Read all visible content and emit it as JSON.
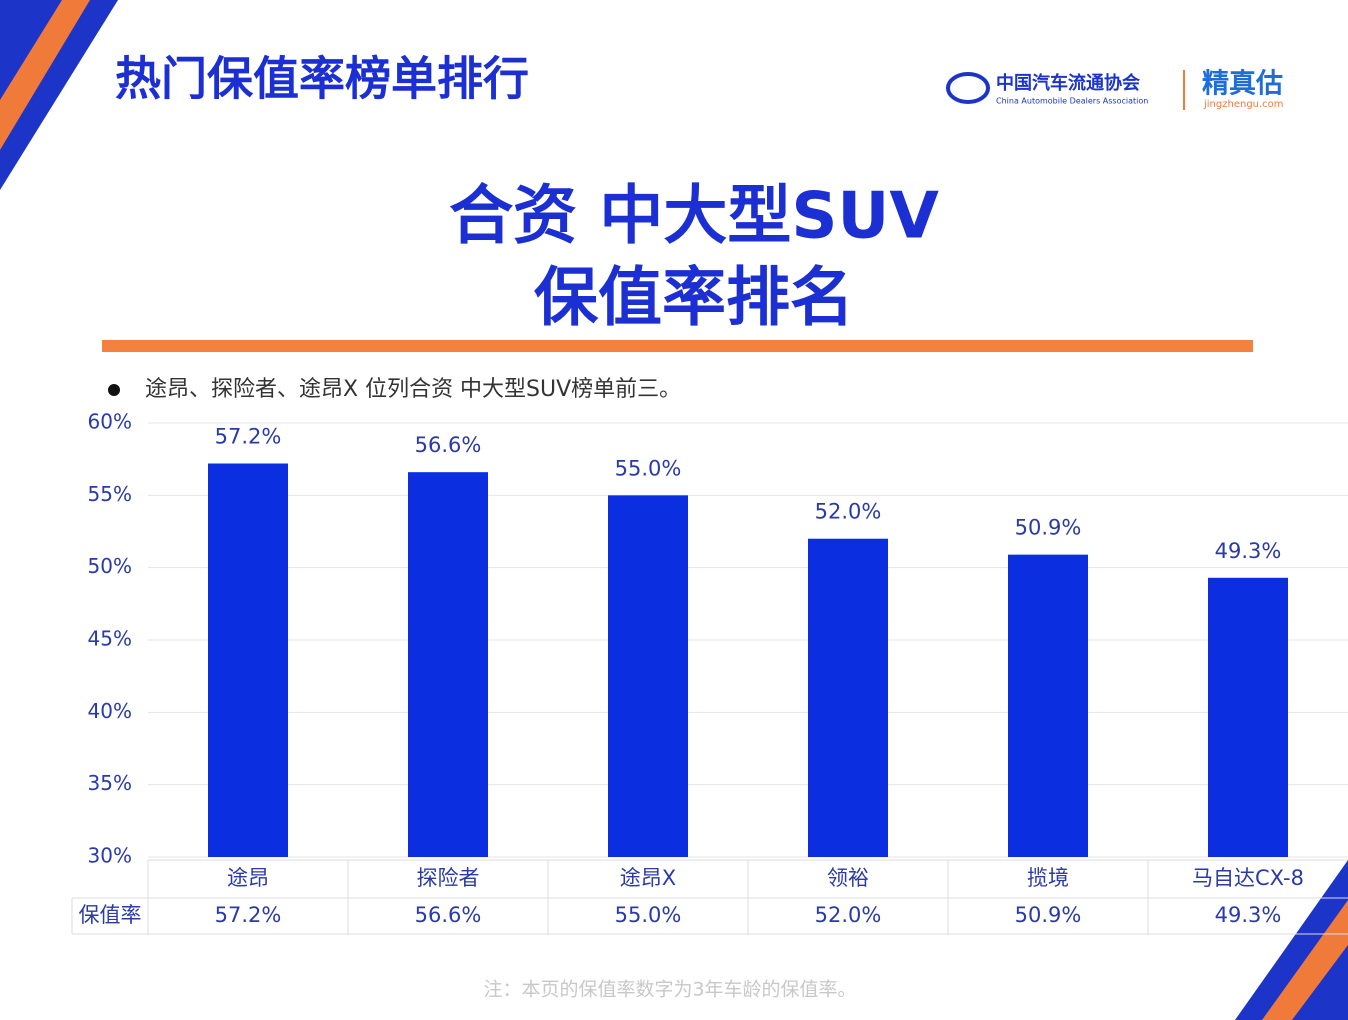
{
  "header": {
    "title": "热门保值率榜单排行",
    "logo_cn": "中国汽车流通协会",
    "logo_en": "China Automobile Dealers Association",
    "brand": "精真估",
    "brand_url": "jingzhengu.com"
  },
  "chart_data": {
    "type": "bar",
    "title": [
      "合资 中大型SUV",
      "保值率排名"
    ],
    "note": "途昂、探险者、途昂X 位列合资 中大型SUV榜单前三。",
    "categories": [
      "途昂",
      "探险者",
      "途昂X",
      "领裕",
      "揽境",
      "马自达CX-8"
    ],
    "series": [
      {
        "name": "保值率",
        "color": "#0b2ee0",
        "values": [
          57.2,
          56.6,
          55.0,
          52.0,
          50.9,
          49.3
        ],
        "value_labels": [
          "57.2%",
          "56.6%",
          "55.0%",
          "52.0%",
          "50.9%",
          "49.3%"
        ]
      }
    ],
    "ylim": [
      30,
      60
    ],
    "yticks": [
      {
        "value": 30,
        "label": "30%"
      },
      {
        "value": 35,
        "label": "35%"
      },
      {
        "value": 40,
        "label": "40%"
      },
      {
        "value": 45,
        "label": "45%"
      },
      {
        "value": 50,
        "label": "50%"
      },
      {
        "value": 55,
        "label": "55%"
      },
      {
        "value": 60,
        "label": "60%"
      }
    ],
    "grid": true,
    "footnote": "注：本页的保值率数字为3年车龄的保值率。"
  }
}
